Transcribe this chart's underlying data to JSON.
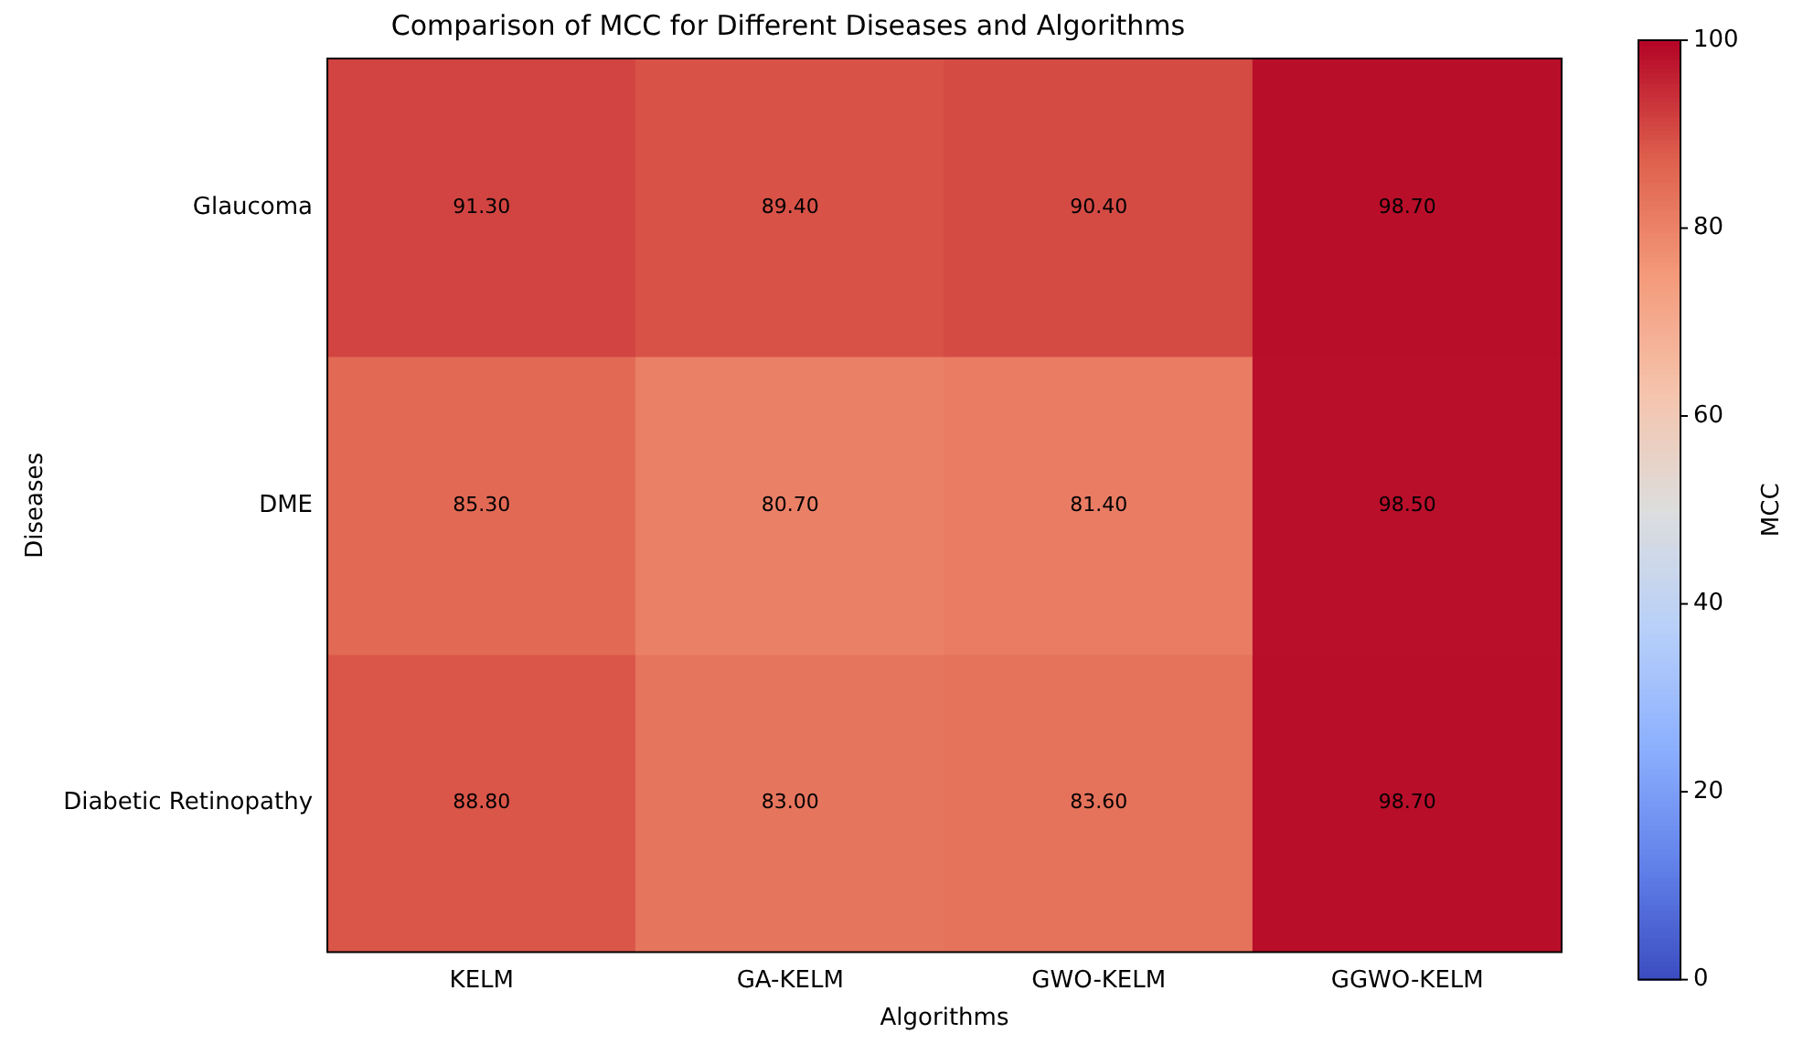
{
  "chart_data": {
    "type": "heatmap",
    "title": "Comparison of MCC for Different Diseases and Algorithms",
    "xlabel": "Algorithms",
    "ylabel": "Diseases",
    "clabel": "MCC",
    "categories": [
      "KELM",
      "GA-KELM",
      "GWO-KELM",
      "GGWO-KELM"
    ],
    "y_categories": [
      "Glaucoma",
      "DME",
      "Diabetic Retinopathy"
    ],
    "cells": [
      [
        91.3,
        89.4,
        90.4,
        98.7
      ],
      [
        85.3,
        80.7,
        81.4,
        98.5
      ],
      [
        88.8,
        83.0,
        83.6,
        98.7
      ]
    ],
    "cell_labels": [
      [
        "91.30",
        "89.40",
        "90.40",
        "98.70"
      ],
      [
        "85.30",
        "80.70",
        "81.40",
        "98.50"
      ],
      [
        "88.80",
        "83.00",
        "83.60",
        "98.70"
      ]
    ],
    "clim": [
      0,
      100
    ],
    "cticks": [
      0,
      20,
      40,
      60,
      80,
      100
    ],
    "grid": false
  }
}
